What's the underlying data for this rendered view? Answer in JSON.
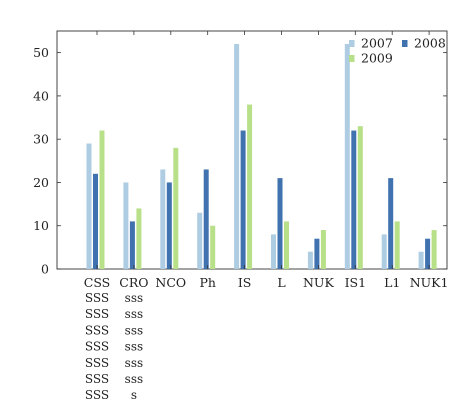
{
  "chart_data": {
    "type": "bar",
    "categories": [
      "CSS",
      "CRO",
      "NCO",
      "Ph",
      "IS",
      "L",
      "NUK",
      "IS1",
      "L1",
      "NUK1"
    ],
    "series": [
      {
        "name": "2007",
        "color": "#aecde3",
        "values": [
          29,
          20,
          23,
          13,
          52,
          8,
          4,
          52,
          8,
          4
        ]
      },
      {
        "name": "2008",
        "color": "#3f72ae",
        "values": [
          22,
          11,
          20,
          23,
          32,
          21,
          7,
          32,
          21,
          7
        ]
      },
      {
        "name": "2009",
        "color": "#b7e089",
        "values": [
          32,
          14,
          28,
          10,
          38,
          11,
          9,
          33,
          11,
          9
        ]
      }
    ],
    "ylim": [
      0,
      55
    ],
    "yticks": [
      0,
      10,
      20,
      30,
      40,
      50
    ],
    "grid": false,
    "legend_position": "top-right",
    "extra_labels": [
      {
        "category": "CSS",
        "lines": [
          "SSS",
          "SSS",
          "SSS",
          "SSS",
          "SSS",
          "SSS",
          "SSS"
        ]
      },
      {
        "category": "CRO",
        "lines": [
          "sss",
          "sss",
          "sss",
          "sss",
          "sss",
          "sss",
          "s"
        ]
      }
    ]
  }
}
